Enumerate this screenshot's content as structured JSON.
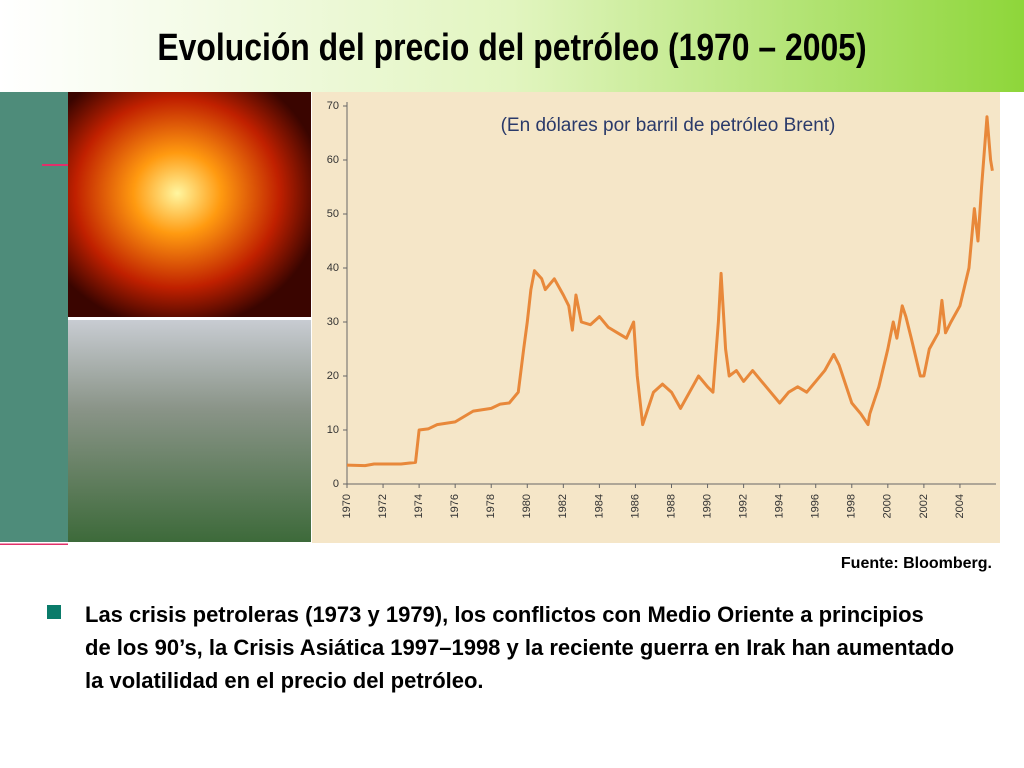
{
  "slide": {
    "title": "Evolución del precio del petróleo (1970 – 2005)",
    "source": "Fuente: Bloomberg.",
    "bullet": "Las crisis petroleras (1973 y 1979), los conflictos con Medio Oriente a principios de los 90’s, la Crisis Asiática 1997–1998 y la reciente guerra en Irak han aumentado la volatilidad en el precio del petróleo."
  },
  "chart_data": {
    "type": "line",
    "subtitle": "(En dólares por barril de petróleo Brent)",
    "x": [
      1970,
      1971,
      1971.5,
      1972,
      1973,
      1973.8,
      1974,
      1974.5,
      1975,
      1976,
      1976.5,
      1977,
      1978,
      1978.5,
      1979,
      1979.5,
      1979.8,
      1980,
      1980.2,
      1980.4,
      1980.8,
      1981,
      1981.5,
      1982,
      1982.3,
      1982.5,
      1982.7,
      1983,
      1983.5,
      1984,
      1984.5,
      1985,
      1985.5,
      1985.9,
      1986.1,
      1986.4,
      1986.7,
      1987,
      1987.5,
      1988,
      1988.5,
      1989,
      1989.5,
      1990,
      1990.3,
      1990.6,
      1990.75,
      1991,
      1991.2,
      1991.6,
      1992,
      1992.5,
      1993,
      1993.5,
      1994,
      1994.5,
      1995,
      1995.5,
      1996,
      1996.5,
      1997,
      1997.3,
      1997.6,
      1998,
      1998.5,
      1998.9,
      1999,
      1999.5,
      2000,
      2000.3,
      2000.5,
      2000.8,
      2001,
      2001.3,
      2001.8,
      2002,
      2002.3,
      2002.8,
      2003,
      2003.2,
      2003.5,
      2004,
      2004.5,
      2004.8,
      2005,
      2005.2,
      2005.5,
      2005.7,
      2005.8
    ],
    "series": [
      {
        "name": "Brent",
        "color": "#e8883a",
        "values": [
          3.5,
          3.4,
          3.7,
          3.7,
          3.7,
          4.0,
          10.0,
          10.2,
          11.0,
          11.5,
          12.5,
          13.5,
          14.0,
          14.8,
          15.0,
          17,
          25,
          30,
          36,
          39.5,
          38,
          36,
          38,
          35,
          33,
          28.5,
          35,
          30,
          29.5,
          31,
          29,
          28,
          27,
          30,
          20,
          11,
          14,
          17,
          18.5,
          17,
          14,
          17,
          20,
          18,
          17,
          30,
          39,
          25,
          20,
          21,
          19,
          21,
          19,
          17,
          15,
          17,
          18,
          17,
          19,
          21,
          24,
          22,
          19,
          15,
          13,
          11,
          13,
          18,
          25,
          30,
          27,
          33,
          31,
          27,
          20,
          20,
          25,
          28,
          34,
          28,
          30,
          33,
          40,
          51,
          45,
          55,
          68,
          60,
          58
        ]
      }
    ],
    "xlim": [
      1970,
      2006
    ],
    "xticks": [
      1970,
      1972,
      1974,
      1976,
      1978,
      1980,
      1982,
      1984,
      1986,
      1988,
      1990,
      1992,
      1994,
      1996,
      1998,
      2000,
      2002,
      2004
    ],
    "ylim": [
      0,
      70
    ],
    "yticks": [
      0,
      10,
      20,
      30,
      40,
      50,
      60,
      70
    ],
    "grid": false
  }
}
